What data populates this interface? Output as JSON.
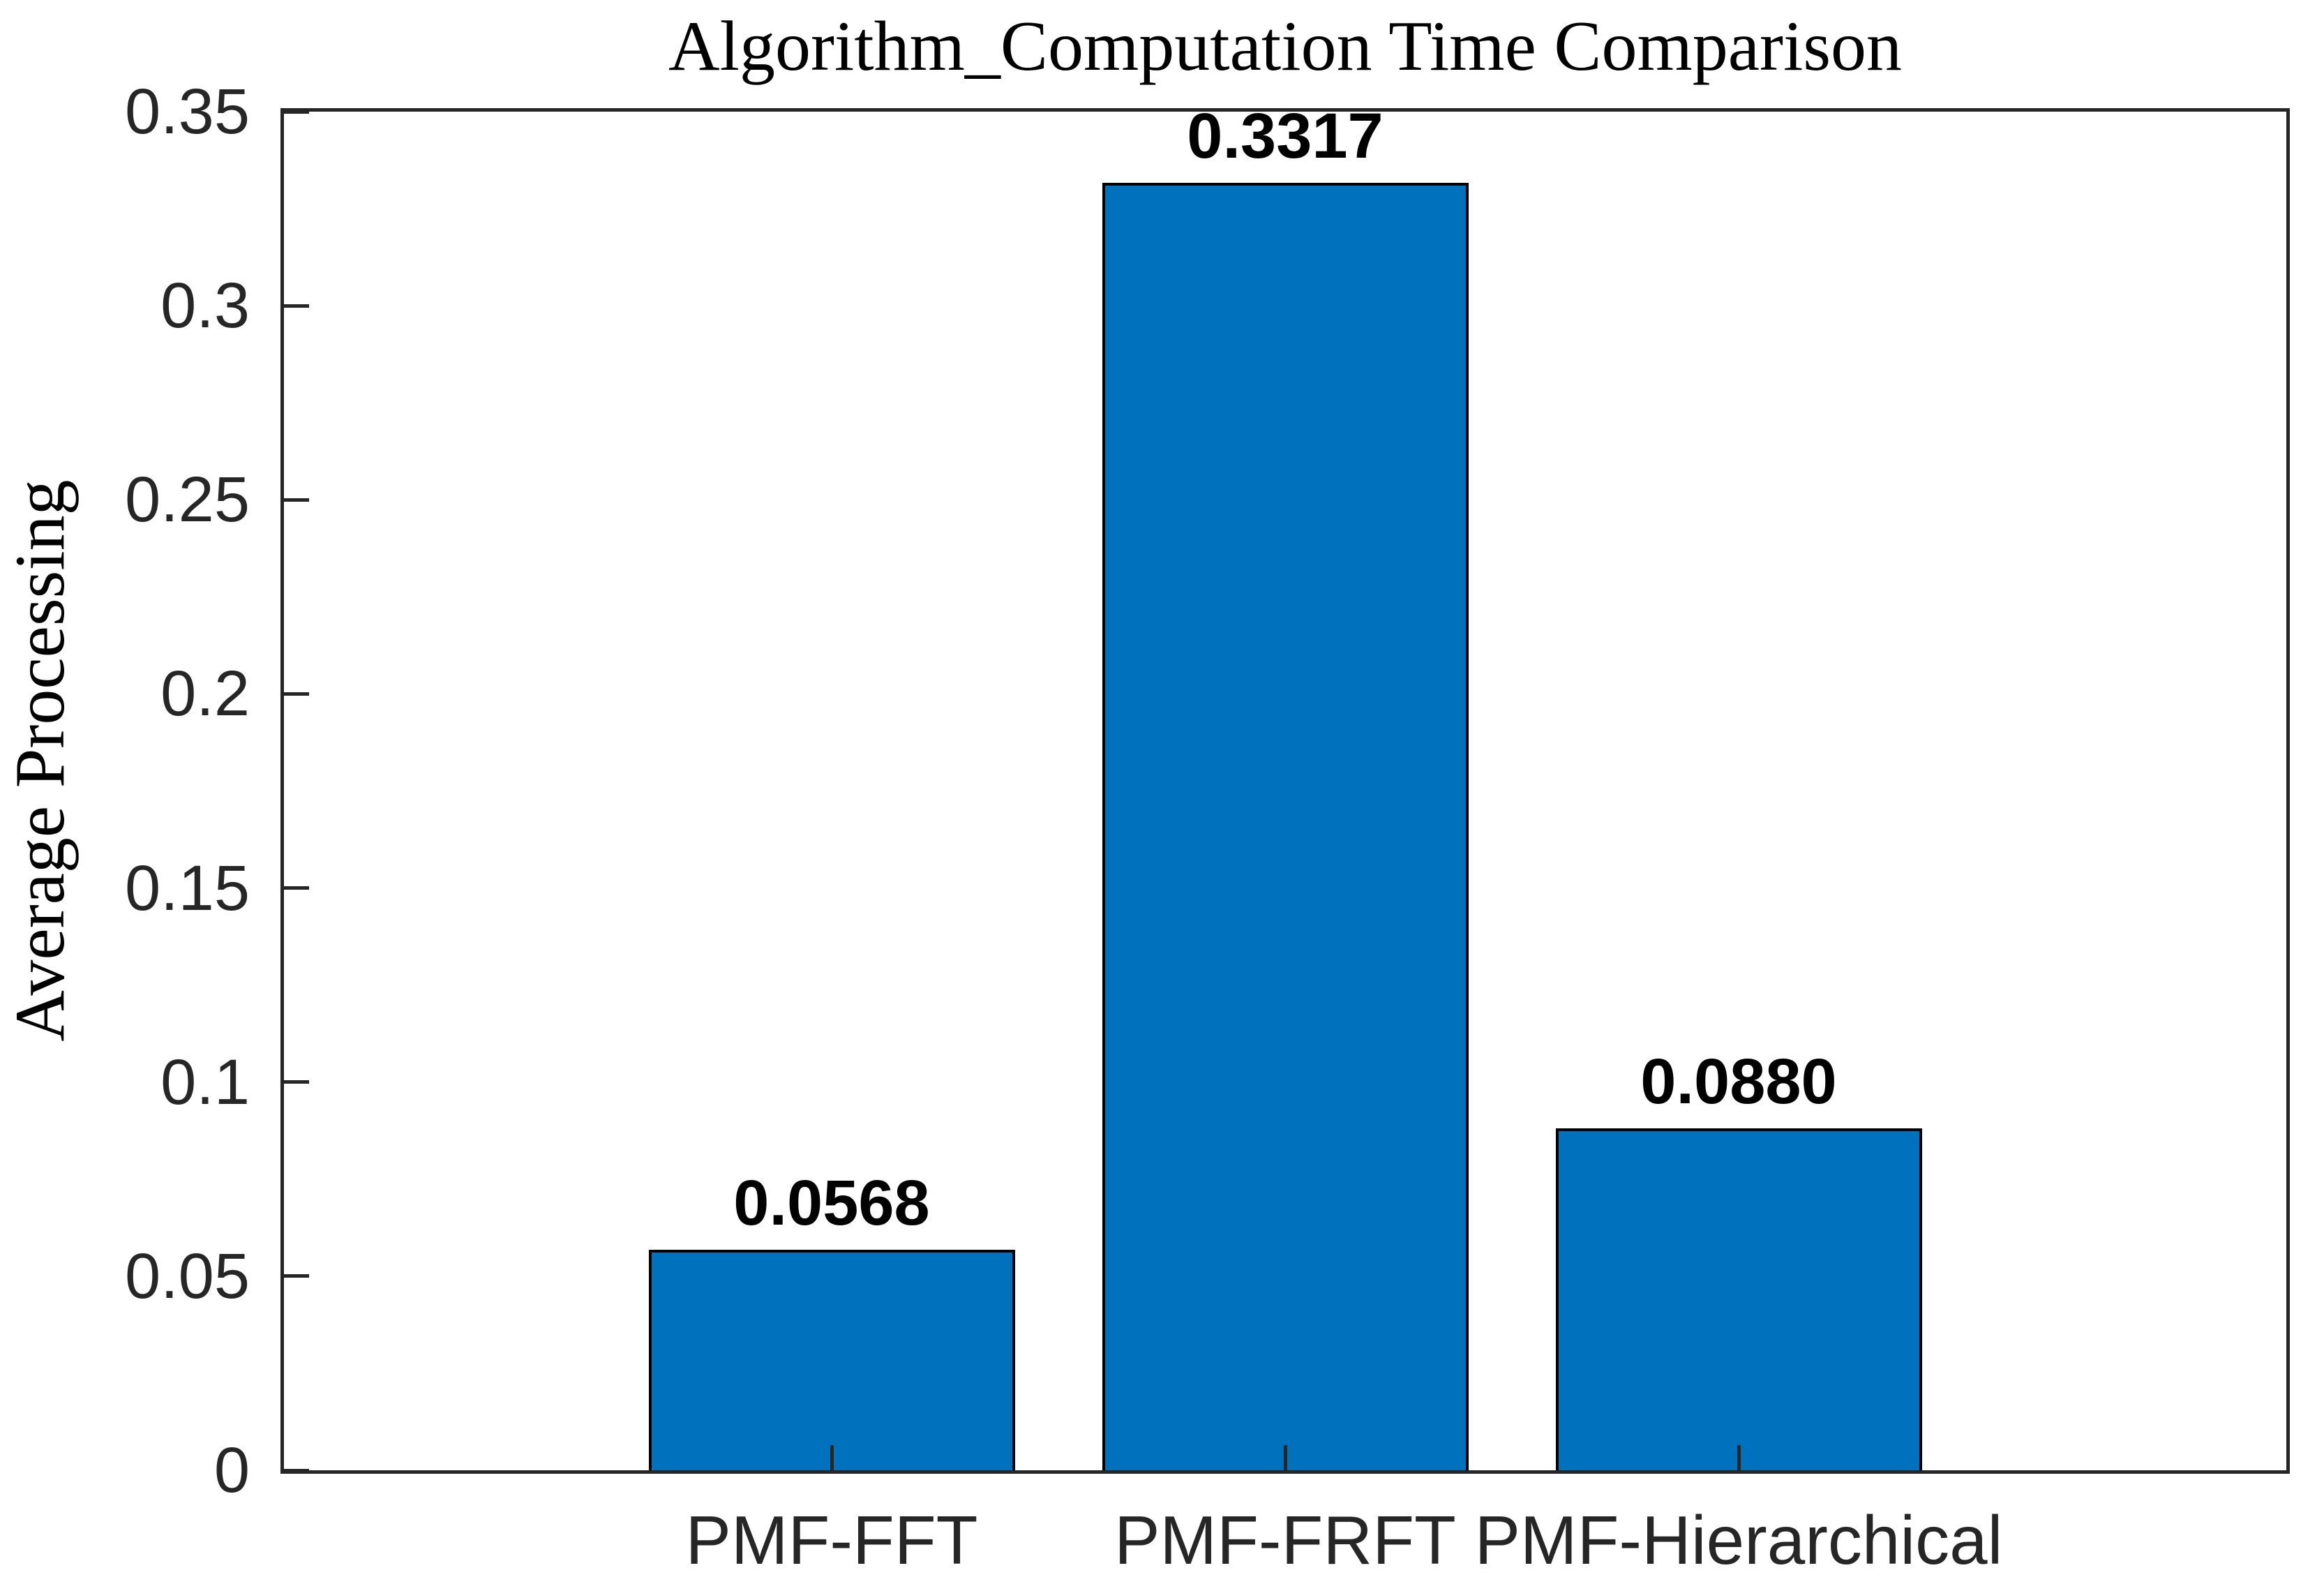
{
  "chart_data": {
    "type": "bar",
    "title": "Algorithm_Computation Time Comparison",
    "xlabel": "",
    "ylabel": "Average Processing",
    "categories": [
      "PMF-FFT",
      "PMF-FRFT",
      "PMF-Hierarchical"
    ],
    "values": [
      0.0568,
      0.3317,
      0.088
    ],
    "bar_value_labels": [
      "0.0568",
      "0.3317",
      "0.0880"
    ],
    "ylim": [
      0,
      0.35
    ],
    "yticks": [
      0,
      0.05,
      0.1,
      0.15,
      0.2,
      0.25,
      0.3,
      0.35
    ],
    "ytick_labels": [
      "0",
      "0.05",
      "0.1",
      "0.15",
      "0.2",
      "0.25",
      "0.3",
      "0.35"
    ],
    "grid": false,
    "legend": null,
    "layout_hints": {
      "box_outline": true,
      "ticks_direction": "in",
      "bar_width_fraction": 0.8
    },
    "colors": {
      "bar_fill": "#0072BD",
      "bar_edge": "#000000",
      "axis_box": "#262626",
      "tick_label": "#262626",
      "title_text": "#000000",
      "value_label": "#000000",
      "background": "#ffffff"
    }
  }
}
